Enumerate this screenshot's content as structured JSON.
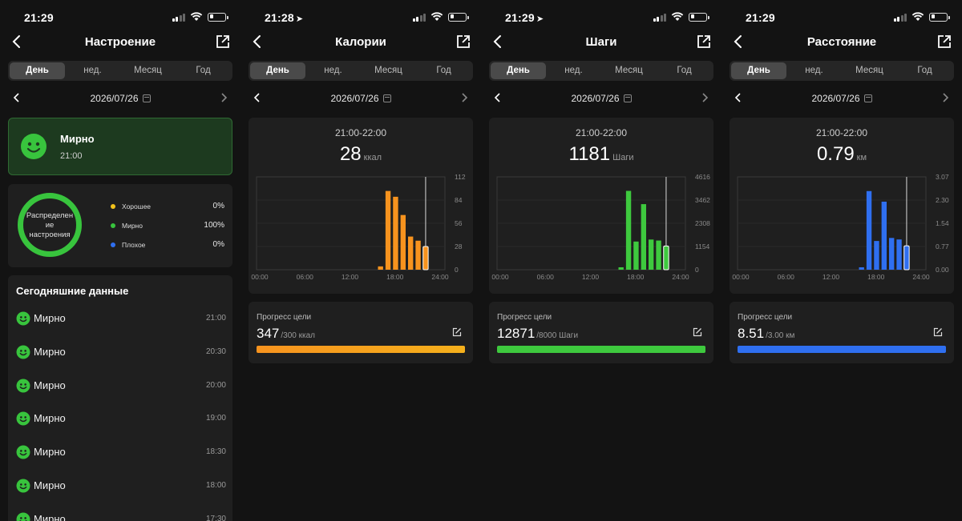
{
  "tabs": [
    "День",
    "нед.",
    "Месяц",
    "Год"
  ],
  "date": "2026/07/26",
  "screens": [
    {
      "status_time": "21:29",
      "location_arrow": false,
      "title": "Настроение",
      "current_mood": {
        "label": "Мирно",
        "time": "21:00"
      },
      "distribution": {
        "ring_label": "Распределен\nие\nнастроения",
        "items": [
          {
            "label": "Хорошее",
            "pct": "0%",
            "color": "#f2c21b"
          },
          {
            "label": "Мирно",
            "pct": "100%",
            "color": "#38c43d"
          },
          {
            "label": "Плохое",
            "pct": "0%",
            "color": "#2f6ff0"
          }
        ]
      },
      "today": {
        "title": "Сегодняшние данные",
        "rows": [
          {
            "label": "Мирно",
            "time": "21:00"
          },
          {
            "label": "Мирно",
            "time": "20:30"
          },
          {
            "label": "Мирно",
            "time": "20:00"
          },
          {
            "label": "Мирно",
            "time": "19:00"
          },
          {
            "label": "Мирно",
            "time": "18:30"
          },
          {
            "label": "Мирно",
            "time": "18:00"
          },
          {
            "label": "Мирно",
            "time": "17:30"
          }
        ]
      }
    },
    {
      "status_time": "21:28",
      "location_arrow": true,
      "title": "Калории",
      "range": "21:00-22:00",
      "value": "28",
      "unit": "ккал",
      "goal": {
        "label": "Прогресс цели",
        "value": "347",
        "target": "/300 ккал",
        "progress": 1.0
      },
      "chart_data": {
        "type": "bar",
        "color": "#f7931e",
        "x_ticks": [
          "00:00",
          "06:00",
          "12:00",
          "18:00",
          "24:00"
        ],
        "y_ticks": [
          "0",
          "28",
          "56",
          "84",
          "112"
        ],
        "ylim": [
          0,
          112
        ],
        "hours": [
          16,
          17,
          18,
          19,
          20,
          21,
          22
        ],
        "values": [
          4,
          95,
          88,
          66,
          40,
          35,
          28
        ],
        "selected_hour": 22
      }
    },
    {
      "status_time": "21:29",
      "location_arrow": true,
      "title": "Шаги",
      "range": "21:00-22:00",
      "value": "1181",
      "unit": "Шаги",
      "goal": {
        "label": "Прогресс цели",
        "value": "12871",
        "target": "/8000 Шаги",
        "progress": 1.0
      },
      "chart_data": {
        "type": "bar",
        "color": "#3ec93e",
        "x_ticks": [
          "00:00",
          "06:00",
          "12:00",
          "18:00",
          "24:00"
        ],
        "y_ticks": [
          "0",
          "1154",
          "2308",
          "3462",
          "4616"
        ],
        "ylim": [
          0,
          4616
        ],
        "hours": [
          16,
          17,
          18,
          19,
          20,
          21,
          22
        ],
        "values": [
          120,
          3920,
          1400,
          3260,
          1500,
          1450,
          1181
        ],
        "selected_hour": 22
      }
    },
    {
      "status_time": "21:29",
      "location_arrow": false,
      "title": "Расстояние",
      "range": "21:00-22:00",
      "value": "0.79",
      "unit": "км",
      "goal": {
        "label": "Прогресс цели",
        "value": "8.51",
        "target": "/3.00 км",
        "progress": 1.0
      },
      "chart_data": {
        "type": "bar",
        "color": "#2f6ff0",
        "x_ticks": [
          "00:00",
          "06:00",
          "12:00",
          "18:00",
          "24:00"
        ],
        "y_ticks": [
          "0.00",
          "0.77",
          "1.54",
          "2.30",
          "3.07"
        ],
        "ylim": [
          0,
          3.07
        ],
        "hours": [
          16,
          17,
          18,
          19,
          20,
          21,
          22
        ],
        "values": [
          0.08,
          2.6,
          0.95,
          2.25,
          1.05,
          1.0,
          0.79
        ],
        "selected_hour": 22
      }
    }
  ],
  "colors": {
    "bg": "#131313",
    "card": "#1f1f1f",
    "mood_green": "#38c43d"
  }
}
